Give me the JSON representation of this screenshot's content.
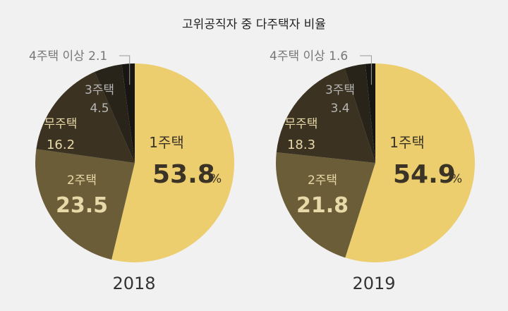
{
  "title": "고위공직자 중 다주택자 비율",
  "percent_sign": "%",
  "colors": {
    "1주택": "#ecce6e",
    "2주택": "#6b5d38",
    "무주택": "#3b3221",
    "3주택": "#28241a",
    "4주택 이상": "#181612",
    "label_on_light": "#3a3326",
    "label_on_dark": "#e8d9a8",
    "label_gray": "#b6b6b6",
    "outside_label": "#777777"
  },
  "chart_data": [
    {
      "type": "pie",
      "year": "2018",
      "title": "2018",
      "slices": [
        {
          "label": "1주택",
          "value": 53.8,
          "display": "53.8"
        },
        {
          "label": "2주택",
          "value": 23.5,
          "display": "23.5"
        },
        {
          "label": "무주택",
          "value": 16.2,
          "display": "16.2"
        },
        {
          "label": "3주택",
          "value": 4.5,
          "display": "4.5"
        },
        {
          "label": "4주택 이상",
          "value": 2.1,
          "display": "2.1"
        }
      ]
    },
    {
      "type": "pie",
      "year": "2019",
      "title": "2019",
      "slices": [
        {
          "label": "1주택",
          "value": 54.9,
          "display": "54.9"
        },
        {
          "label": "2주택",
          "value": 21.8,
          "display": "21.8"
        },
        {
          "label": "무주택",
          "value": 18.3,
          "display": "18.3"
        },
        {
          "label": "3주택",
          "value": 3.4,
          "display": "3.4"
        },
        {
          "label": "4주택 이상",
          "value": 1.6,
          "display": "1.6"
        }
      ]
    }
  ]
}
